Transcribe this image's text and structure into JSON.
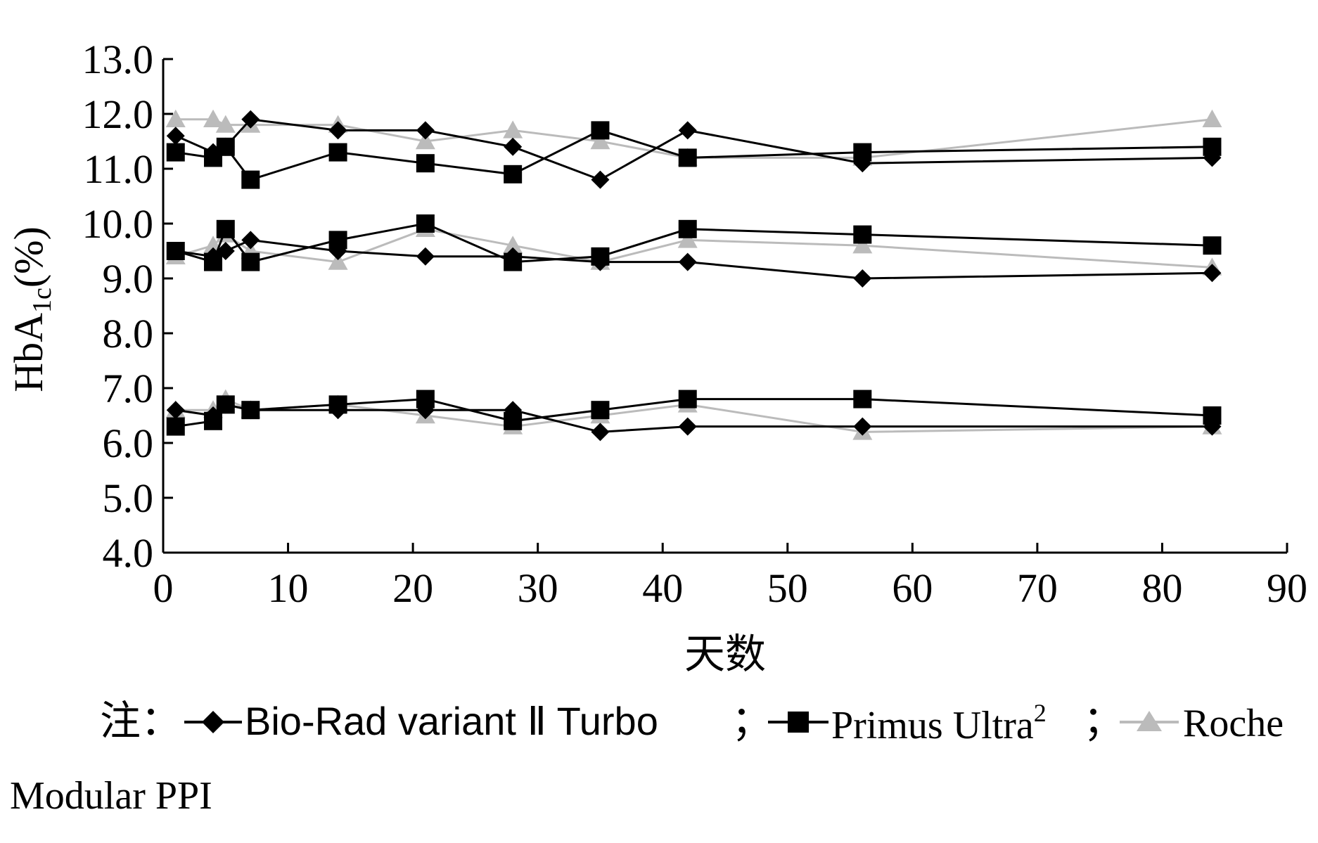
{
  "chart_data": {
    "type": "line",
    "xlabel": "天数",
    "ylabel": "HbA",
    "ylabel_sub": "1c",
    "ylabel_suffix": "(%)",
    "xlim": [
      0,
      90
    ],
    "ylim": [
      4.0,
      13.0
    ],
    "x_ticks": [
      "0",
      "10",
      "20",
      "30",
      "40",
      "50",
      "60",
      "70",
      "80",
      "90"
    ],
    "y_ticks": [
      "4.0",
      "5.0",
      "6.0",
      "7.0",
      "8.0",
      "9.0",
      "10.0",
      "11.0",
      "12.0",
      "13.0"
    ],
    "grid": false,
    "legend_position": "bottom",
    "legend_prefix": "注：",
    "legend_separator": "；",
    "legend_wrap": "Modular PPI",
    "series": [
      {
        "name": "Bio-Rad variant Ⅱ Turbo",
        "color": "#000000",
        "marker": "diamond",
        "groups": [
          {
            "x": [
              1,
              4,
              5,
              7,
              14,
              21,
              28,
              35,
              42,
              56,
              84
            ],
            "y": [
              11.6,
              11.3,
              11.4,
              11.9,
              11.7,
              11.7,
              11.4,
              10.8,
              11.7,
              11.1,
              11.2
            ]
          },
          {
            "x": [
              1,
              4,
              5,
              7,
              14,
              21,
              28,
              35,
              42,
              56,
              84
            ],
            "y": [
              9.5,
              9.4,
              9.5,
              9.7,
              9.5,
              9.4,
              9.4,
              9.3,
              9.3,
              9.0,
              9.1
            ]
          },
          {
            "x": [
              1,
              4,
              5,
              7,
              14,
              21,
              28,
              35,
              42,
              56,
              84
            ],
            "y": [
              6.6,
              6.5,
              6.7,
              6.6,
              6.6,
              6.6,
              6.6,
              6.2,
              6.3,
              6.3,
              6.3
            ]
          }
        ]
      },
      {
        "name": "Primus Ultra",
        "name_sup": "2",
        "color": "#000000",
        "marker": "square",
        "groups": [
          {
            "x": [
              1,
              4,
              5,
              7,
              14,
              21,
              28,
              35,
              42,
              56,
              84
            ],
            "y": [
              11.3,
              11.2,
              11.4,
              10.8,
              11.3,
              11.1,
              10.9,
              11.7,
              11.2,
              11.3,
              11.4
            ]
          },
          {
            "x": [
              1,
              4,
              5,
              7,
              14,
              21,
              28,
              35,
              42,
              56,
              84
            ],
            "y": [
              9.5,
              9.3,
              9.9,
              9.3,
              9.7,
              10.0,
              9.3,
              9.4,
              9.9,
              9.8,
              9.6
            ]
          },
          {
            "x": [
              1,
              4,
              5,
              7,
              14,
              21,
              28,
              35,
              42,
              56,
              84
            ],
            "y": [
              6.3,
              6.4,
              6.7,
              6.6,
              6.7,
              6.8,
              6.4,
              6.6,
              6.8,
              6.8,
              6.5
            ]
          }
        ]
      },
      {
        "name": "Roche",
        "color": "#bbbbbb",
        "marker": "triangle",
        "groups": [
          {
            "x": [
              1,
              4,
              5,
              7,
              14,
              21,
              28,
              35,
              42,
              56,
              84
            ],
            "y": [
              11.9,
              11.9,
              11.8,
              11.8,
              11.8,
              11.5,
              11.7,
              11.5,
              11.2,
              11.2,
              11.9
            ]
          },
          {
            "x": [
              1,
              4,
              5,
              7,
              14,
              21,
              28,
              35,
              42,
              56,
              84
            ],
            "y": [
              9.4,
              9.6,
              9.8,
              9.5,
              9.3,
              9.9,
              9.6,
              9.3,
              9.7,
              9.6,
              9.2
            ]
          },
          {
            "x": [
              1,
              4,
              5,
              7,
              14,
              21,
              28,
              35,
              42,
              56,
              84
            ],
            "y": [
              6.6,
              6.6,
              6.8,
              6.6,
              6.7,
              6.5,
              6.3,
              6.5,
              6.7,
              6.2,
              6.3
            ]
          }
        ]
      }
    ]
  }
}
